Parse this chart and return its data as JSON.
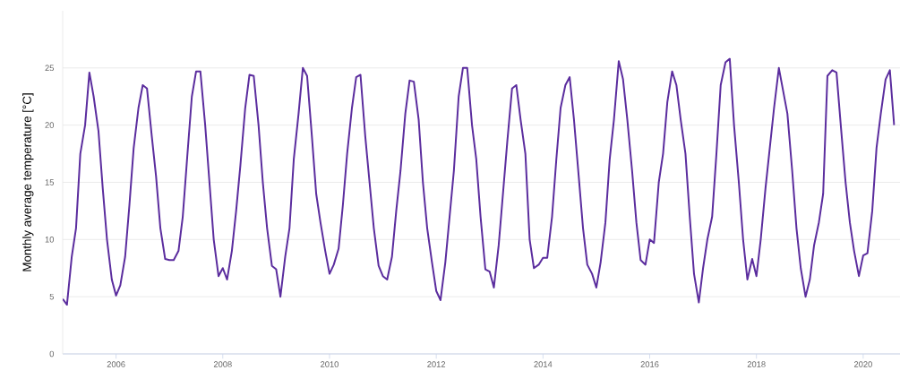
{
  "chart_data": {
    "type": "line",
    "ylabel": "Monthly average temperature [°C]",
    "x": [
      "2005-01",
      "2005-02",
      "2005-03",
      "2005-04",
      "2005-05",
      "2005-06",
      "2005-07",
      "2005-08",
      "2005-09",
      "2005-10",
      "2005-11",
      "2005-12",
      "2006-01",
      "2006-02",
      "2006-03",
      "2006-04",
      "2006-05",
      "2006-06",
      "2006-07",
      "2006-08",
      "2006-09",
      "2006-10",
      "2006-11",
      "2006-12",
      "2007-01",
      "2007-02",
      "2007-03",
      "2007-04",
      "2007-05",
      "2007-06",
      "2007-07",
      "2007-08",
      "2007-09",
      "2007-10",
      "2007-11",
      "2007-12",
      "2008-01",
      "2008-02",
      "2008-03",
      "2008-04",
      "2008-05",
      "2008-06",
      "2008-07",
      "2008-08",
      "2008-09",
      "2008-10",
      "2008-11",
      "2008-12",
      "2009-01",
      "2009-02",
      "2009-03",
      "2009-04",
      "2009-05",
      "2009-06",
      "2009-07",
      "2009-08",
      "2009-09",
      "2009-10",
      "2009-11",
      "2009-12",
      "2010-01",
      "2010-02",
      "2010-03",
      "2010-04",
      "2010-05",
      "2010-06",
      "2010-07",
      "2010-08",
      "2010-09",
      "2010-10",
      "2010-11",
      "2010-12",
      "2011-01",
      "2011-02",
      "2011-03",
      "2011-04",
      "2011-05",
      "2011-06",
      "2011-07",
      "2011-08",
      "2011-09",
      "2011-10",
      "2011-11",
      "2011-12",
      "2012-01",
      "2012-02",
      "2012-03",
      "2012-04",
      "2012-05",
      "2012-06",
      "2012-07",
      "2012-08",
      "2012-09",
      "2012-10",
      "2012-11",
      "2012-12",
      "2013-01",
      "2013-02",
      "2013-03",
      "2013-04",
      "2013-05",
      "2013-06",
      "2013-07",
      "2013-08",
      "2013-09",
      "2013-10",
      "2013-11",
      "2013-12",
      "2014-01",
      "2014-02",
      "2014-03",
      "2014-04",
      "2014-05",
      "2014-06",
      "2014-07",
      "2014-08",
      "2014-09",
      "2014-10",
      "2014-11",
      "2014-12",
      "2015-01",
      "2015-02",
      "2015-03",
      "2015-04",
      "2015-05",
      "2015-06",
      "2015-07",
      "2015-08",
      "2015-09",
      "2015-10",
      "2015-11",
      "2015-12",
      "2016-01",
      "2016-02",
      "2016-03",
      "2016-04",
      "2016-05",
      "2016-06",
      "2016-07",
      "2016-08",
      "2016-09",
      "2016-10",
      "2016-11",
      "2016-12",
      "2017-01",
      "2017-02",
      "2017-03",
      "2017-04",
      "2017-05",
      "2017-06",
      "2017-07",
      "2017-08",
      "2017-09",
      "2017-10",
      "2017-11",
      "2017-12",
      "2018-01",
      "2018-02",
      "2018-03",
      "2018-04",
      "2018-05",
      "2018-06",
      "2018-07",
      "2018-08",
      "2018-09",
      "2018-10",
      "2018-11",
      "2018-12",
      "2019-01",
      "2019-02",
      "2019-03",
      "2019-04",
      "2019-05",
      "2019-06",
      "2019-07",
      "2019-08",
      "2019-09",
      "2019-10",
      "2019-11",
      "2019-12",
      "2020-01",
      "2020-02",
      "2020-03",
      "2020-04",
      "2020-05",
      "2020-06",
      "2020-07",
      "2020-08"
    ],
    "series": [
      {
        "color": "#5b2d9e",
        "values": [
          4.8,
          4.3,
          8.5,
          11,
          17.5,
          20,
          24.6,
          22.5,
          19.5,
          14.5,
          10,
          6.5,
          5.1,
          6,
          8.5,
          13,
          18,
          21.5,
          23.5,
          23.2,
          19,
          15.5,
          11,
          8.3,
          8.2,
          8.2,
          9,
          12,
          17,
          22.5,
          24.7,
          24.7,
          20,
          15,
          10,
          6.8,
          7.5,
          6.5,
          9,
          12.5,
          16.5,
          21.5,
          24.4,
          24.3,
          20,
          15,
          11,
          7.7,
          7.4,
          5,
          8.5,
          11,
          17,
          21,
          25,
          24.3,
          19,
          14,
          11.5,
          9,
          7,
          7.8,
          9.2,
          13,
          17.5,
          21.5,
          24.2,
          24.4,
          19,
          15,
          11,
          7.7,
          6.8,
          6.5,
          8.5,
          12.5,
          16,
          21,
          23.9,
          23.8,
          20.5,
          15,
          11,
          8,
          5.5,
          4.7,
          8,
          12,
          16,
          22.5,
          25,
          25,
          20,
          17,
          12,
          7.4,
          7.2,
          5.8,
          9.5,
          14,
          18.5,
          23.2,
          23.5,
          20.5,
          17.5,
          10,
          7.5,
          7.8,
          8.4,
          8.4,
          12,
          17,
          21.5,
          23.5,
          24.2,
          20.5,
          15.5,
          11,
          7.8,
          7,
          5.8,
          8,
          11.5,
          17,
          20.5,
          25.6,
          24,
          20.5,
          16,
          11.5,
          8.2,
          7.8,
          10,
          9.7,
          15,
          17.5,
          22,
          24.7,
          23.5,
          20.5,
          17.5,
          12,
          7,
          4.5,
          7.5,
          10,
          12,
          17.5,
          23.5,
          25.5,
          25.8,
          20,
          15,
          10,
          6.5,
          8.3,
          6.8,
          10,
          14.5,
          18,
          21.5,
          25,
          23,
          21,
          16,
          11,
          7.5,
          5,
          6.5,
          9.5,
          11.5,
          14,
          24.3,
          24.8,
          24.6,
          20,
          15,
          11.5,
          9,
          6.8,
          8.6,
          8.8,
          12.5,
          18,
          21,
          24,
          24.8,
          20
        ]
      }
    ],
    "xlim": [
      "2005-01",
      "2020-09-09"
    ],
    "xticks": [
      "2006",
      "2008",
      "2010",
      "2012",
      "2014",
      "2016",
      "2018",
      "2020"
    ],
    "ylim": [
      0,
      30
    ],
    "yticks": [
      0,
      5,
      10,
      15,
      20,
      25
    ],
    "grid": "y"
  }
}
